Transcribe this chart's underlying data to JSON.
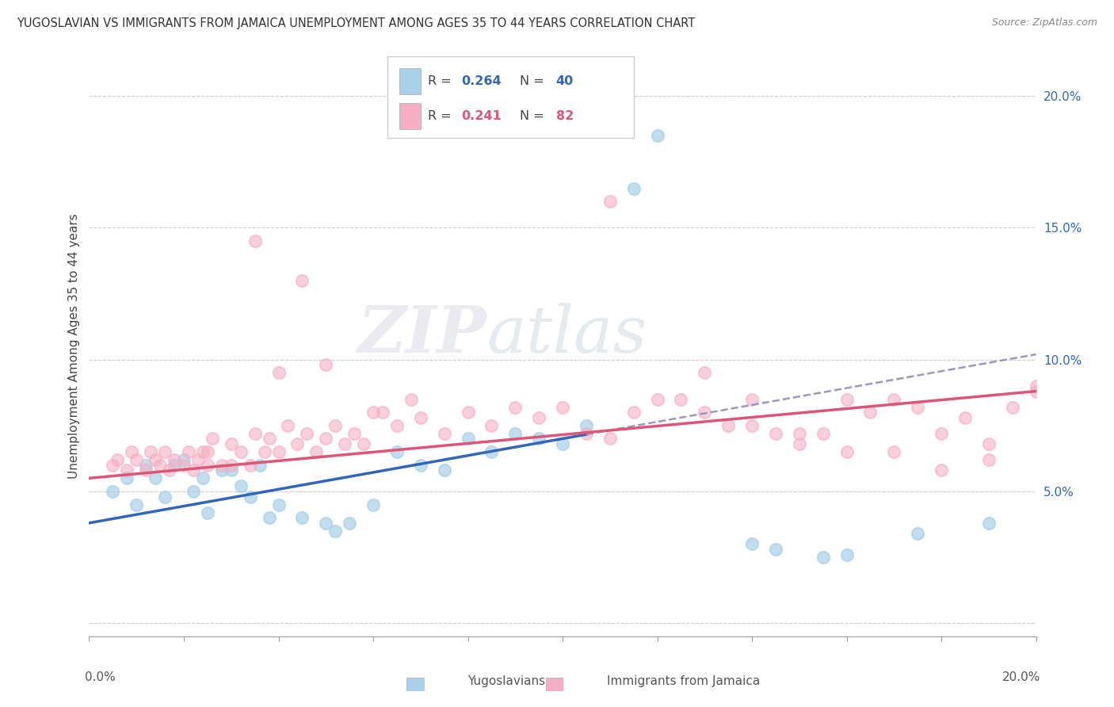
{
  "title": "YUGOSLAVIAN VS IMMIGRANTS FROM JAMAICA UNEMPLOYMENT AMONG AGES 35 TO 44 YEARS CORRELATION CHART",
  "source": "Source: ZipAtlas.com",
  "ylabel": "Unemployment Among Ages 35 to 44 years",
  "xlim": [
    0.0,
    0.2
  ],
  "ylim": [
    -0.005,
    0.215
  ],
  "yticks": [
    0.0,
    0.05,
    0.1,
    0.15,
    0.2
  ],
  "ytick_labels": [
    "",
    "5.0%",
    "10.0%",
    "15.0%",
    "20.0%"
  ],
  "legend1_r": "0.264",
  "legend1_n": "40",
  "legend2_r": "0.241",
  "legend2_n": "82",
  "blue_color": "#a8d0e8",
  "pink_color": "#f4afc4",
  "blue_line_color": "#3366bb",
  "pink_line_color": "#dd5577",
  "dash_color": "#9999bb",
  "blue_trend_start_y": 0.038,
  "blue_trend_end_y": 0.102,
  "pink_trend_start_y": 0.055,
  "pink_trend_end_y": 0.088,
  "blue_x": [
    0.005,
    0.008,
    0.01,
    0.012,
    0.014,
    0.016,
    0.018,
    0.02,
    0.022,
    0.024,
    0.025,
    0.028,
    0.03,
    0.032,
    0.034,
    0.036,
    0.038,
    0.04,
    0.045,
    0.05,
    0.052,
    0.055,
    0.06,
    0.065,
    0.07,
    0.075,
    0.08,
    0.085,
    0.09,
    0.095,
    0.1,
    0.105,
    0.115,
    0.12,
    0.14,
    0.145,
    0.155,
    0.16,
    0.175,
    0.19
  ],
  "blue_y": [
    0.05,
    0.055,
    0.045,
    0.06,
    0.055,
    0.048,
    0.06,
    0.062,
    0.05,
    0.055,
    0.042,
    0.058,
    0.058,
    0.052,
    0.048,
    0.06,
    0.04,
    0.045,
    0.04,
    0.038,
    0.035,
    0.038,
    0.045,
    0.065,
    0.06,
    0.058,
    0.07,
    0.065,
    0.072,
    0.07,
    0.068,
    0.075,
    0.165,
    0.185,
    0.03,
    0.028,
    0.025,
    0.026,
    0.034,
    0.038
  ],
  "pink_x": [
    0.005,
    0.006,
    0.008,
    0.009,
    0.01,
    0.012,
    0.013,
    0.014,
    0.015,
    0.016,
    0.017,
    0.018,
    0.02,
    0.021,
    0.022,
    0.023,
    0.024,
    0.025,
    0.026,
    0.028,
    0.03,
    0.032,
    0.034,
    0.035,
    0.037,
    0.038,
    0.04,
    0.042,
    0.044,
    0.046,
    0.048,
    0.05,
    0.052,
    0.054,
    0.056,
    0.058,
    0.06,
    0.062,
    0.065,
    0.068,
    0.07,
    0.075,
    0.08,
    0.085,
    0.09,
    0.095,
    0.1,
    0.105,
    0.11,
    0.115,
    0.12,
    0.125,
    0.13,
    0.135,
    0.14,
    0.145,
    0.15,
    0.155,
    0.16,
    0.165,
    0.17,
    0.175,
    0.18,
    0.185,
    0.19,
    0.195,
    0.2,
    0.2,
    0.035,
    0.04,
    0.045,
    0.05,
    0.11,
    0.13,
    0.14,
    0.15,
    0.16,
    0.17,
    0.18,
    0.19,
    0.025,
    0.03
  ],
  "pink_y": [
    0.06,
    0.062,
    0.058,
    0.065,
    0.062,
    0.058,
    0.065,
    0.062,
    0.06,
    0.065,
    0.058,
    0.062,
    0.06,
    0.065,
    0.058,
    0.062,
    0.065,
    0.06,
    0.07,
    0.06,
    0.068,
    0.065,
    0.06,
    0.072,
    0.065,
    0.07,
    0.065,
    0.075,
    0.068,
    0.072,
    0.065,
    0.07,
    0.075,
    0.068,
    0.072,
    0.068,
    0.08,
    0.08,
    0.075,
    0.085,
    0.078,
    0.072,
    0.08,
    0.075,
    0.082,
    0.078,
    0.082,
    0.072,
    0.07,
    0.08,
    0.085,
    0.085,
    0.08,
    0.075,
    0.075,
    0.072,
    0.072,
    0.072,
    0.085,
    0.08,
    0.085,
    0.082,
    0.072,
    0.078,
    0.068,
    0.082,
    0.09,
    0.088,
    0.145,
    0.095,
    0.13,
    0.098,
    0.16,
    0.095,
    0.085,
    0.068,
    0.065,
    0.065,
    0.058,
    0.062,
    0.065,
    0.06
  ]
}
